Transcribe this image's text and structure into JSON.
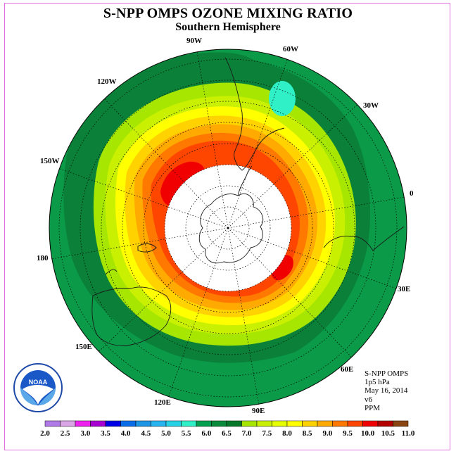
{
  "title": "S-NPP OMPS OZONE MIXING RATIO",
  "subtitle": "Southern Hemisphere",
  "info": {
    "instrument": "S-NPP OMPS",
    "level": "1p5 hPa",
    "date": "May 16, 2014",
    "version": "v6",
    "units": "PPM"
  },
  "longitude_labels": [
    "90W",
    "60W",
    "30W",
    "0",
    "30E",
    "60E",
    "90E",
    "120E",
    "150E",
    "180",
    "150W",
    "120W"
  ],
  "logo_text": "NOAA",
  "colorbar": {
    "colors": [
      "#b07ae8",
      "#dba6e6",
      "#ee22ee",
      "#a800d0",
      "#0000e6",
      "#0a6ee8",
      "#1e96e6",
      "#28b4f0",
      "#28d2e6",
      "#30f0c8",
      "#00a050",
      "#0a8c3c",
      "#067a2a",
      "#a6e600",
      "#c8f000",
      "#e6ff00",
      "#ffff00",
      "#ffd200",
      "#ffaa00",
      "#ff7800",
      "#ff4600",
      "#f00000",
      "#b40000",
      "#8b4513"
    ],
    "labels": [
      "2.0",
      "2.5",
      "3.0",
      "3.5",
      "4.0",
      "4.5",
      "5.0",
      "5.5",
      "6.0",
      "6.5",
      "7.0",
      "7.5",
      "8.0",
      "8.5",
      "9.0",
      "9.5",
      "10.0",
      "10.5",
      "11.0"
    ]
  }
}
